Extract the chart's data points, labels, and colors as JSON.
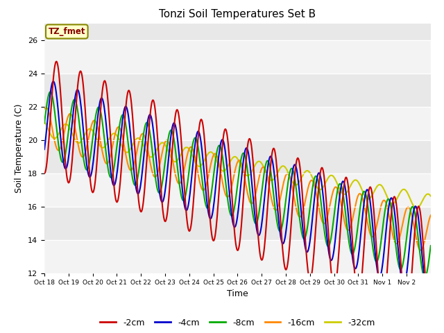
{
  "title": "Tonzi Soil Temperatures Set B",
  "ylabel": "Soil Temperature (C)",
  "xlabel": "Time",
  "annotation": "TZ_fmet",
  "ylim": [
    12,
    27
  ],
  "yticks": [
    12,
    14,
    16,
    18,
    20,
    22,
    24,
    26
  ],
  "x_labels": [
    "Oct 18",
    "Oct 19",
    "Oct 20",
    "Oct 21",
    "Oct 22",
    "Oct 23",
    "Oct 24",
    "Oct 25",
    "Oct 26",
    "Oct 27",
    "Oct 28",
    "Oct 29",
    "Oct 30",
    "Oct 31",
    "Nov 1",
    "Nov 2"
  ],
  "series": {
    "-2cm": {
      "color": "#cc0000",
      "lw": 1.5
    },
    "-4cm": {
      "color": "#0000cc",
      "lw": 1.5
    },
    "-8cm": {
      "color": "#00aa00",
      "lw": 1.5
    },
    "-16cm": {
      "color": "#ff8800",
      "lw": 1.5
    },
    "-32cm": {
      "color": "#cccc00",
      "lw": 1.5
    }
  },
  "bg_color": "#e8e8e8",
  "band_color": "#d0d0d0"
}
